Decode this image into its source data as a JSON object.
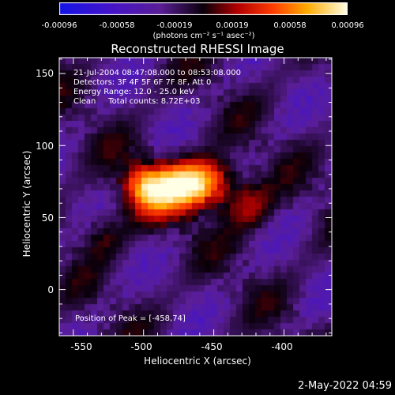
{
  "colorbar": {
    "ticks": [
      "-0.00096",
      "-0.00058",
      "-0.00019",
      "0.00019",
      "0.00058",
      "0.00096"
    ],
    "unit": "(photons cm⁻² s⁻¹ asec⁻²)",
    "range": [
      -0.00096,
      0.00096
    ]
  },
  "info": {
    "time_range": "21-Jul-2004 08:47:08.000 to 08:53:08.000",
    "detectors": "Detectors: 3F 4F 5F 6F 7F 8F, Att 0",
    "energy": "Energy Range: 12.0 - 25.0 keV",
    "clean": "Clean     Total counts: 8.72E+03",
    "peak": "Position of Peak = [-458,74]"
  },
  "footer": {
    "date": "2-May-2022 04:59"
  },
  "chart_data": {
    "type": "heatmap",
    "title": "Reconstructed RHESSI Image",
    "xlabel": "Heliocentric X (arcsec)",
    "ylabel": "Heliocentric Y (arcsec)",
    "xlim": [
      -560,
      -366
    ],
    "ylim": [
      -32,
      161
    ],
    "xticks": [
      -550,
      -500,
      -450,
      -400
    ],
    "yticks": [
      0,
      50,
      100,
      150
    ],
    "xtick_labels": [
      "-550",
      "-500",
      "-450",
      "-400"
    ],
    "ytick_labels": [
      "0",
      "50",
      "100",
      "150"
    ],
    "colormap": "red-temperature (blue-purple negative, red-yellow-white positive)",
    "peak_position": [
      -458,
      74
    ],
    "source_blobs": [
      {
        "x": -458,
        "y": 74,
        "sigma_x": 16,
        "sigma_y": 11,
        "amplitude": 0.00096
      },
      {
        "x": -486,
        "y": 68,
        "sigma_x": 18,
        "sigma_y": 14,
        "amplitude": 0.0007
      },
      {
        "x": -500,
        "y": 74,
        "sigma_x": 10,
        "sigma_y": 10,
        "amplitude": 0.00045
      },
      {
        "x": -425,
        "y": 58,
        "sigma_x": 12,
        "sigma_y": 12,
        "amplitude": 0.0004
      },
      {
        "x": -530,
        "y": 38,
        "sigma_x": 12,
        "sigma_y": 10,
        "amplitude": 0.0003
      }
    ]
  }
}
